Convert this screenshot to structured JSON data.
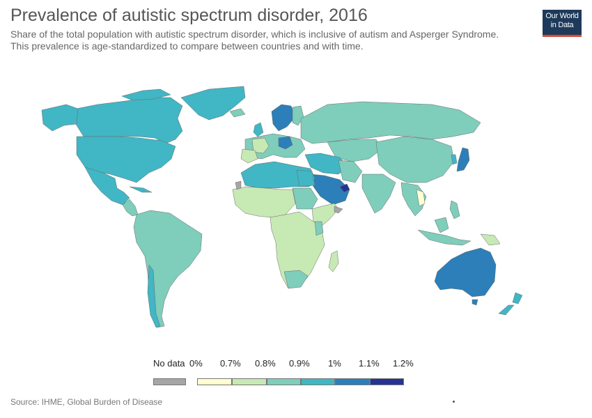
{
  "header": {
    "title": "Prevalence of autistic spectrum disorder, 2016",
    "subtitle_line1": "Share of the total population with autistic spectrum disorder, which is inclusive of autism and Asperger Syndrome.",
    "subtitle_line2": "This prevalence is age-standardized to compare between countries and with time."
  },
  "logo": {
    "line1": "Our World",
    "line2": "in Data"
  },
  "legend": {
    "no_data_label": "No data",
    "no_data_color": "#a6a6a6",
    "bins": [
      {
        "label": "0%",
        "color": "#ffffd2"
      },
      {
        "label": "0.7%",
        "color": "#c7e9b4"
      },
      {
        "label": "0.8%",
        "color": "#7fcdbb"
      },
      {
        "label": "0.9%",
        "color": "#41b6c4"
      },
      {
        "label": "1%",
        "color": "#2c7fb8"
      },
      {
        "label": "1.1%",
        "color": "#253494"
      }
    ],
    "last_label": "1.2%"
  },
  "footer": {
    "source": "Source: IHME, Global Burden of Disease"
  }
}
